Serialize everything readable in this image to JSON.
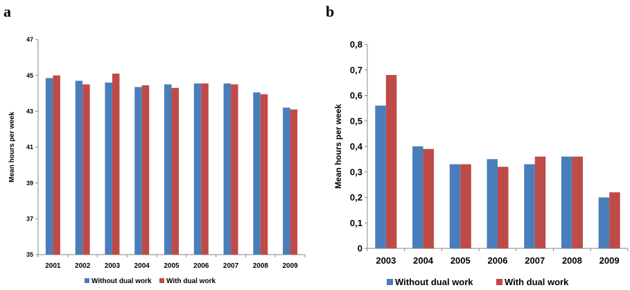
{
  "panels": [
    {
      "label": "a"
    },
    {
      "label": "b"
    }
  ],
  "colors": {
    "without": "#4a7ebb",
    "with": "#be4b48"
  },
  "chart_data": [
    {
      "type": "bar",
      "panel": "a",
      "categories": [
        "2001",
        "2002",
        "2003",
        "2004",
        "2005",
        "2006",
        "2007",
        "2008",
        "2009"
      ],
      "series": [
        {
          "name": "Without dual work",
          "values": [
            44.85,
            44.7,
            44.6,
            44.35,
            44.5,
            44.55,
            44.55,
            44.05,
            43.2
          ]
        },
        {
          "name": "With dual work",
          "values": [
            45.0,
            44.5,
            45.1,
            44.45,
            44.3,
            44.55,
            44.5,
            43.95,
            43.1
          ]
        }
      ],
      "yticks": [
        "35",
        "37",
        "39",
        "41",
        "43",
        "45",
        "47"
      ],
      "ylim": [
        35,
        47
      ],
      "xlabel": "",
      "ylabel": "Mean hours per week",
      "grid": false,
      "legend": "bottom"
    },
    {
      "type": "bar",
      "panel": "b",
      "categories": [
        "2003",
        "2004",
        "2005",
        "2006",
        "2007",
        "2008",
        "2009"
      ],
      "series": [
        {
          "name": "Without dual work",
          "values": [
            0.56,
            0.4,
            0.33,
            0.35,
            0.33,
            0.36,
            0.2
          ]
        },
        {
          "name": "With dual work",
          "values": [
            0.68,
            0.39,
            0.33,
            0.32,
            0.36,
            0.36,
            0.22
          ]
        }
      ],
      "yticks": [
        "0",
        "0,1",
        "0,2",
        "0,3",
        "0,4",
        "0,5",
        "0,6",
        "0,7",
        "0,8"
      ],
      "ylim": [
        0,
        0.8
      ],
      "xlabel": "",
      "ylabel": "Mean hours per week",
      "grid": false,
      "legend": "bottom"
    }
  ]
}
